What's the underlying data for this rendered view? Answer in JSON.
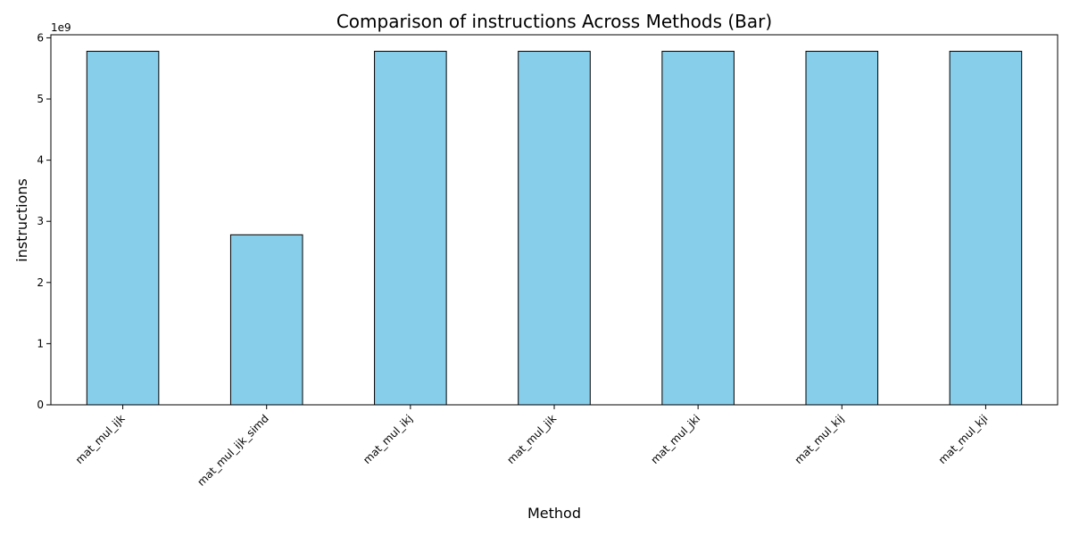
{
  "chart_data": {
    "type": "bar",
    "title": "Comparison of instructions Across Methods (Bar)",
    "xlabel": "Method",
    "ylabel": "instructions",
    "y_offset_label": "1e9",
    "categories": [
      "mat_mul_ijk",
      "mat_mul_ijk_simd",
      "mat_mul_ikj",
      "mat_mul_jik",
      "mat_mul_jki",
      "mat_mul_kij",
      "mat_mul_kji"
    ],
    "values": [
      5780000000,
      2780000000,
      5780000000,
      5780000000,
      5780000000,
      5780000000,
      5780000000
    ],
    "ylim": [
      0,
      6050000000
    ],
    "yticks": [
      0,
      1,
      2,
      3,
      4,
      5,
      6
    ],
    "ytick_scale": 1000000000,
    "grid": false,
    "legend": "none",
    "bar_color": "#87CEEB",
    "bar_edge_color": "#000000"
  }
}
